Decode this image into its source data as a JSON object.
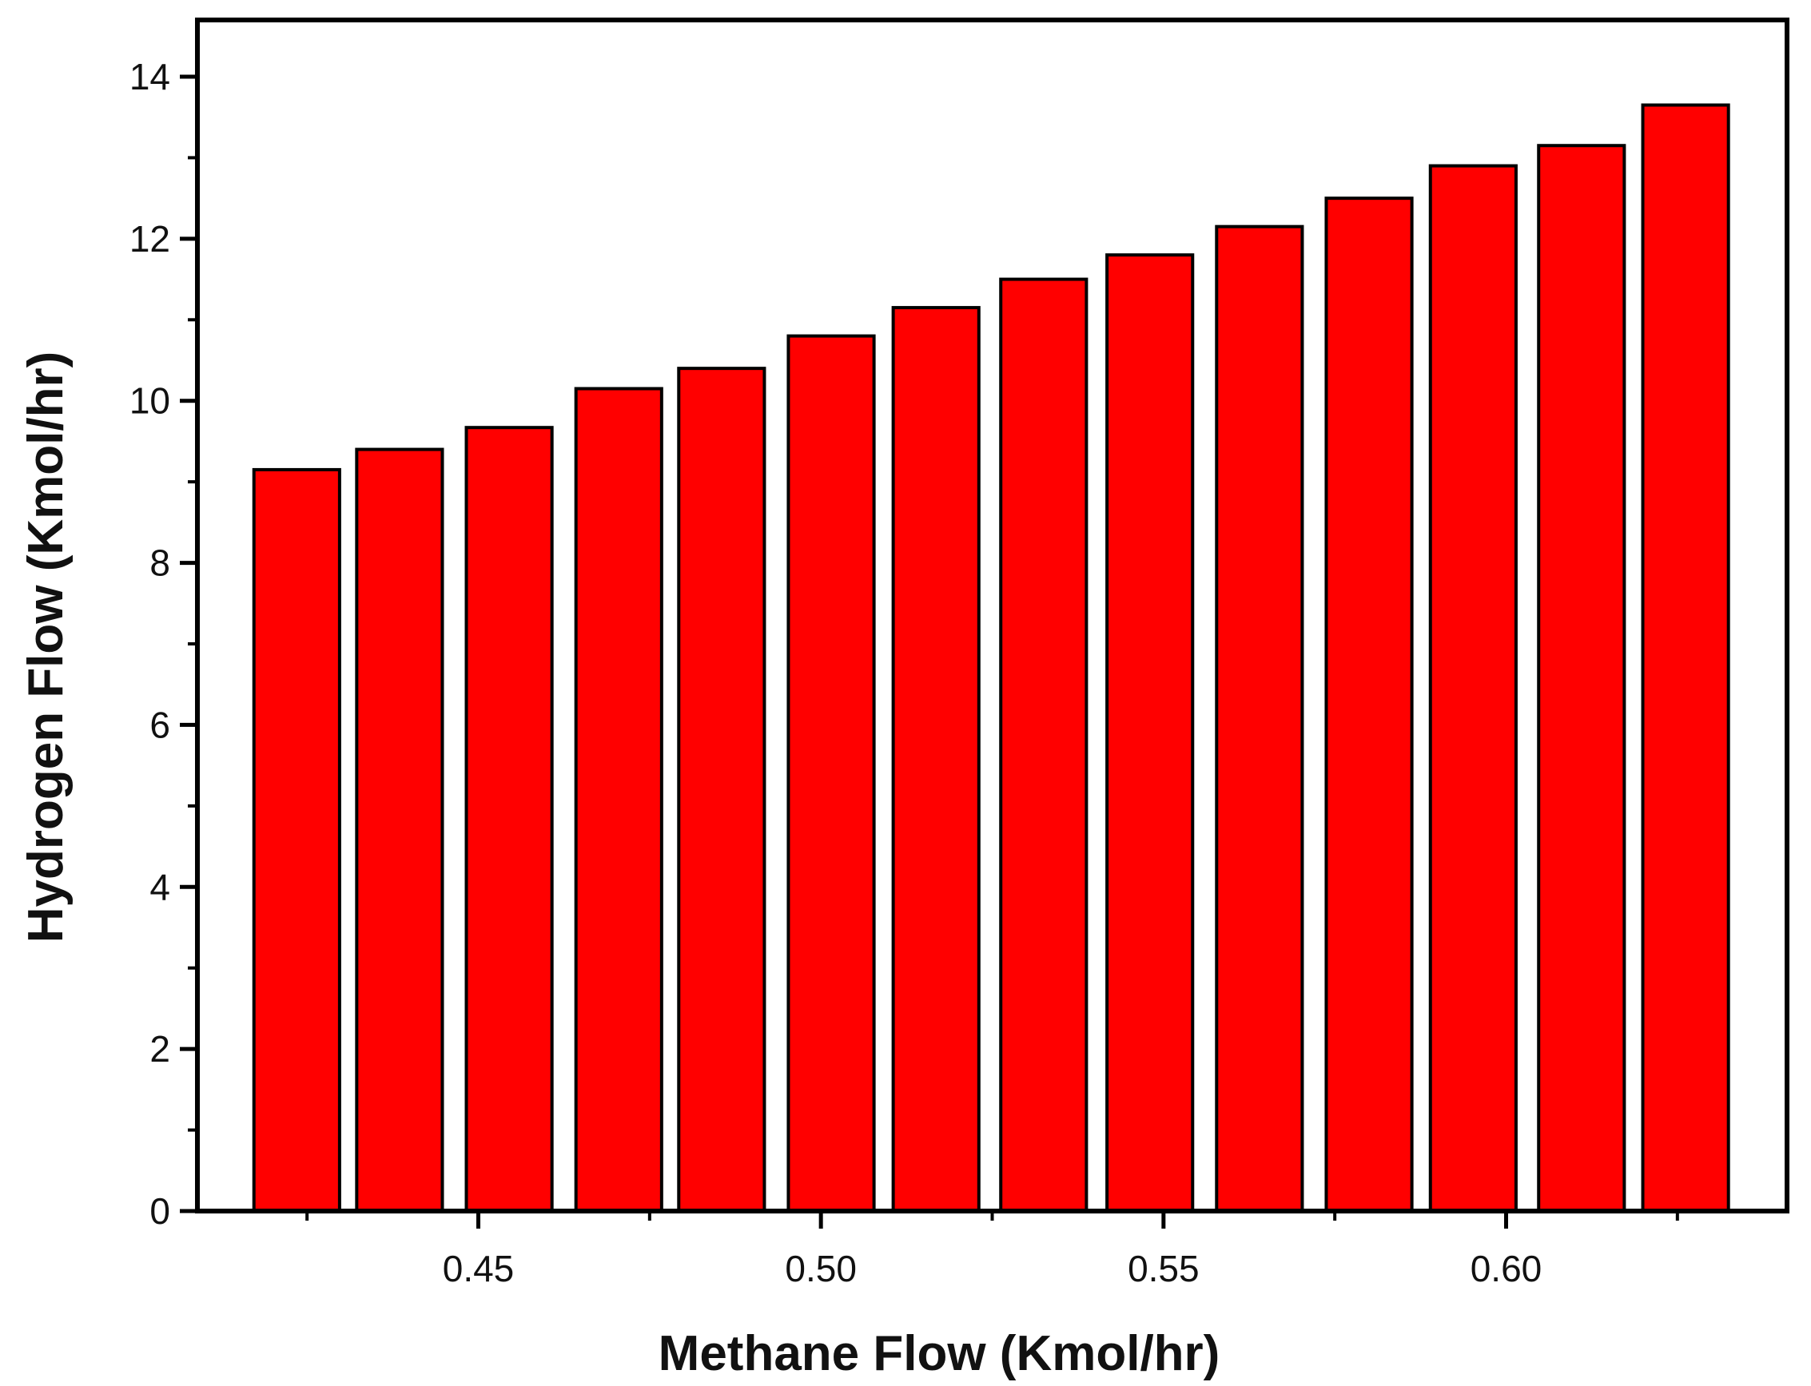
{
  "chart_data": {
    "type": "bar",
    "title": "",
    "xlabel": "Methane Flow (Kmol/hr)",
    "ylabel": "Hydrogen Flow (Kmol/hr)",
    "x": [
      0.4235,
      0.4385,
      0.4545,
      0.4705,
      0.4855,
      0.5015,
      0.5168,
      0.5325,
      0.548,
      0.564,
      0.58,
      0.5952,
      0.611,
      0.6262
    ],
    "values": [
      9.15,
      9.4,
      9.67,
      10.15,
      10.4,
      10.8,
      11.15,
      11.5,
      11.8,
      12.15,
      12.5,
      12.9,
      13.15,
      13.65
    ],
    "bar_width": 0.0125,
    "xlim": [
      0.409,
      0.641
    ],
    "ylim": [
      0,
      14.7
    ],
    "xticks": [
      0.45,
      0.5,
      0.55,
      0.6
    ],
    "xtick_labels": [
      "0.45",
      "0.50",
      "0.55",
      "0.60"
    ],
    "yticks": [
      0,
      2,
      4,
      6,
      8,
      10,
      12,
      14
    ],
    "ytick_labels": [
      "0",
      "2",
      "4",
      "6",
      "8",
      "10",
      "12",
      "14"
    ],
    "grid": false,
    "legend": "none",
    "bar_color": "#ff0000",
    "edge_color": "#000000"
  }
}
